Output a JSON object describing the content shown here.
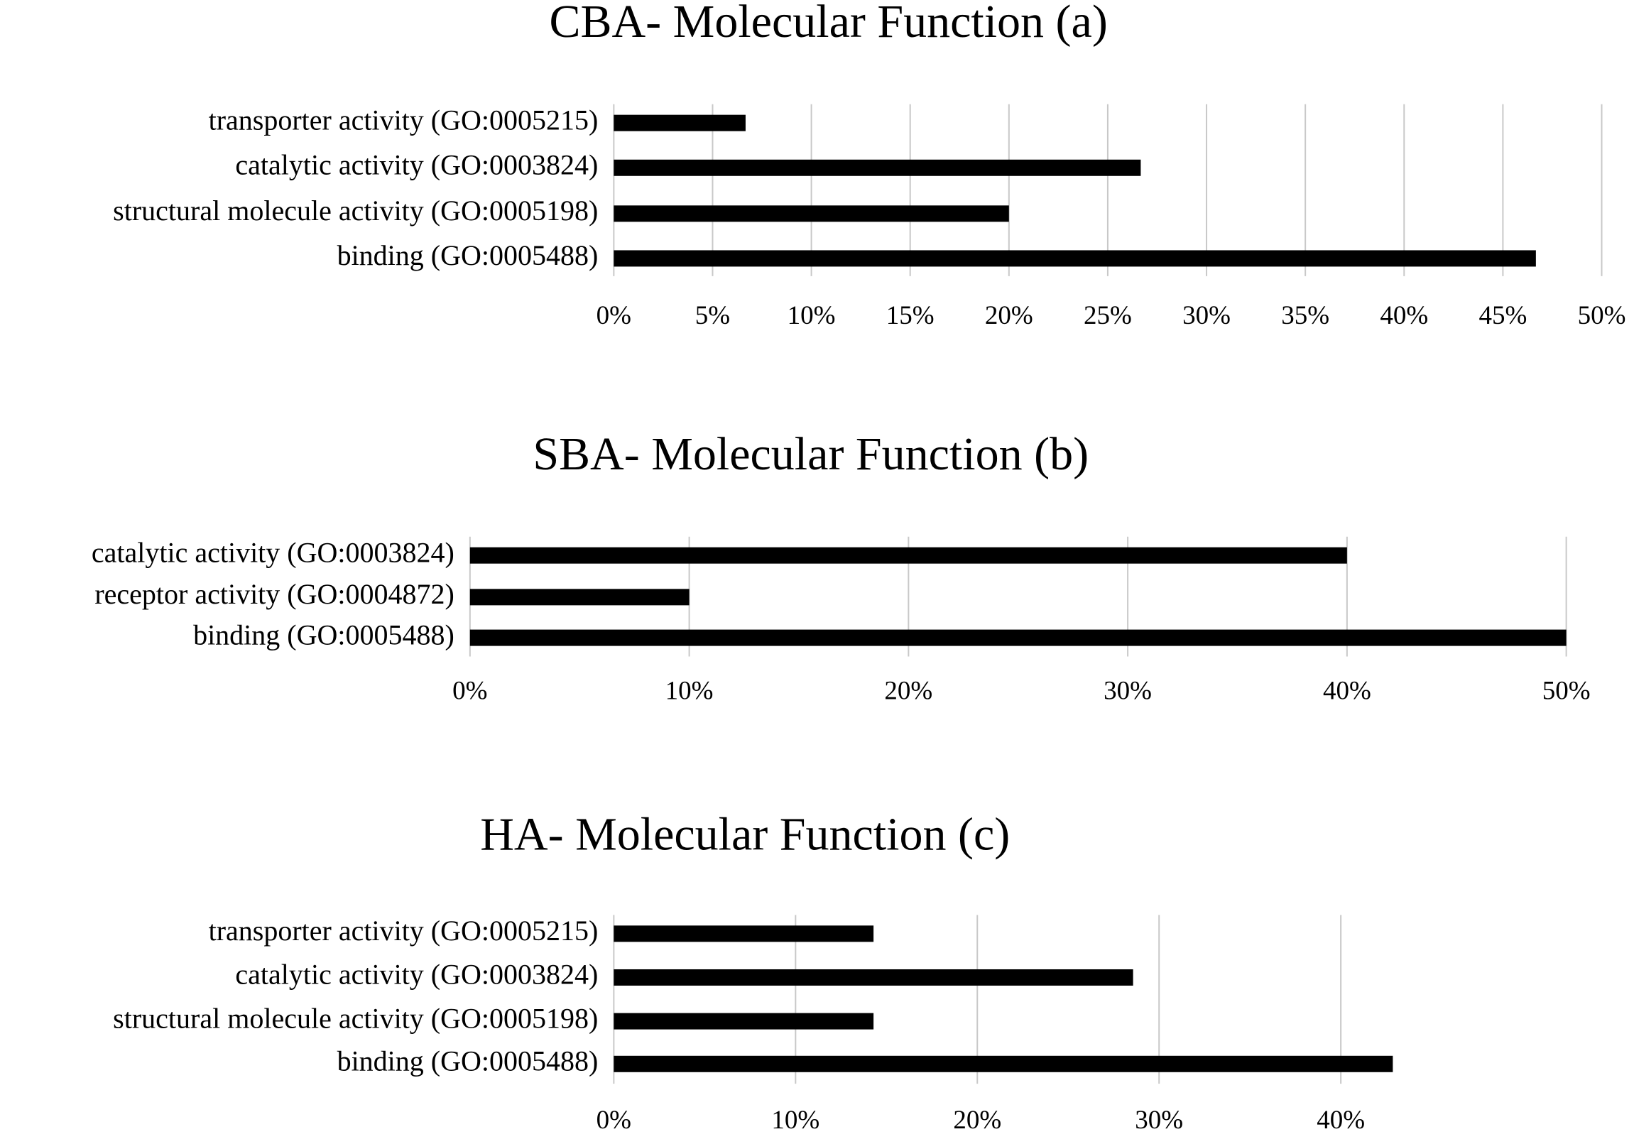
{
  "chart_data": [
    {
      "type": "barh",
      "title": "CBA- Molecular Function (a)",
      "categories": [
        "transporter activity (GO:0005215)",
        "catalytic activity (GO:0003824)",
        "structural molecule activity (GO:0005198)",
        "binding (GO:0005488)"
      ],
      "values": [
        6.67,
        26.67,
        20,
        46.67
      ],
      "color": "#000000",
      "xlim": [
        0,
        50
      ],
      "xticks": [
        {
          "value": 0,
          "label": "0%"
        },
        {
          "value": 5,
          "label": "5%"
        },
        {
          "value": 10,
          "label": "10%"
        },
        {
          "value": 15,
          "label": "15%"
        },
        {
          "value": 20,
          "label": "20%"
        },
        {
          "value": 25,
          "label": "25%"
        },
        {
          "value": 30,
          "label": "30%"
        },
        {
          "value": 35,
          "label": "35%"
        },
        {
          "value": 40,
          "label": "40%"
        },
        {
          "value": 45,
          "label": "45%"
        },
        {
          "value": 50,
          "label": "50%"
        }
      ],
      "grid": true
    },
    {
      "type": "barh",
      "title": "SBA- Molecular Function (b)",
      "categories": [
        "catalytic activity (GO:0003824)",
        "receptor activity (GO:0004872)",
        "binding (GO:0005488)"
      ],
      "values": [
        40,
        10,
        50
      ],
      "color": "#000000",
      "xlim": [
        0,
        50
      ],
      "xticks": [
        {
          "value": 0,
          "label": "0%"
        },
        {
          "value": 10,
          "label": "10%"
        },
        {
          "value": 20,
          "label": "20%"
        },
        {
          "value": 30,
          "label": "30%"
        },
        {
          "value": 40,
          "label": "40%"
        },
        {
          "value": 50,
          "label": "50%"
        }
      ],
      "grid": true
    },
    {
      "type": "barh",
      "title": "HA- Molecular Function (c)",
      "categories": [
        "transporter activity (GO:0005215)",
        "catalytic activity (GO:0003824)",
        "structural molecule activity (GO:0005198)",
        "binding (GO:0005488)"
      ],
      "values": [
        14.29,
        28.57,
        14.29,
        42.86
      ],
      "color": "#000000",
      "xlim": [
        0,
        43
      ],
      "xticks": [
        {
          "value": 0,
          "label": "0%"
        },
        {
          "value": 10,
          "label": "10%"
        },
        {
          "value": 20,
          "label": "20%"
        },
        {
          "value": 30,
          "label": "30%"
        },
        {
          "value": 40,
          "label": "40%"
        }
      ],
      "grid": true
    }
  ]
}
